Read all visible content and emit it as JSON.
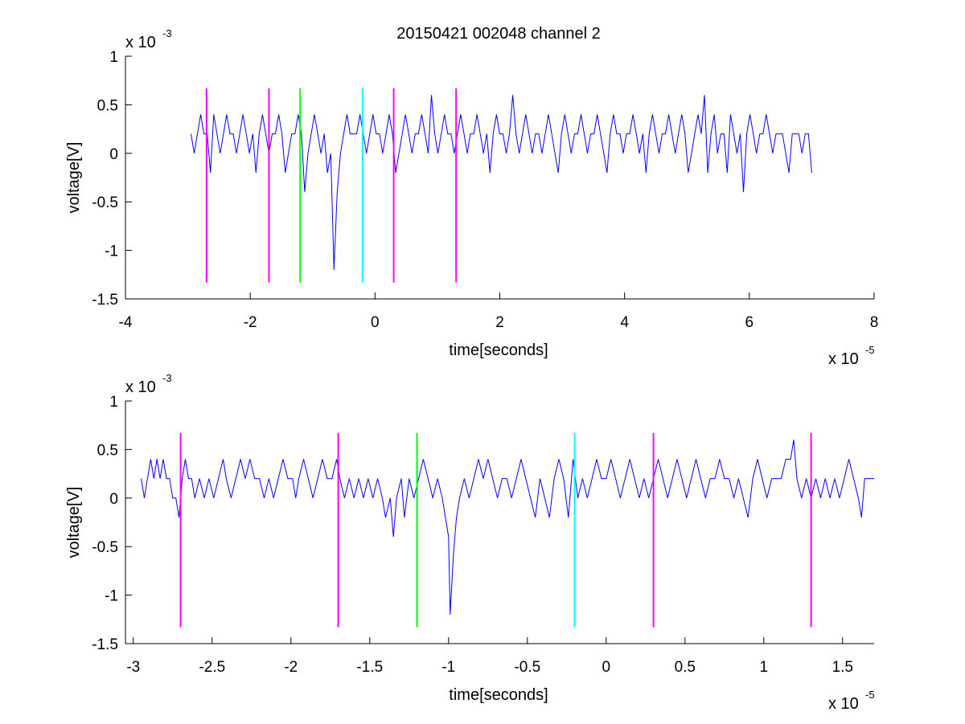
{
  "figure": {
    "title": "20150421 002048 channel 2"
  },
  "chart_data": [
    {
      "type": "line",
      "title": "20150421 002048 channel 2",
      "xlabel": "time[seconds]",
      "ylabel": "voltage[V]",
      "x_exponent_label": "x 10",
      "x_exponent_sup": "-5",
      "y_exponent_label": "x 10",
      "y_exponent_sup": "-3",
      "x_scale": 1e-05,
      "y_scale": 0.001,
      "xlim": [
        -4,
        8
      ],
      "ylim": [
        -1.5,
        1
      ],
      "xticks": [
        -4,
        -2,
        0,
        2,
        4,
        6,
        8
      ],
      "xtick_labels": [
        "-4",
        "-2",
        "0",
        "2",
        "4",
        "6",
        "8"
      ],
      "yticks": [
        -1.5,
        -1,
        -0.5,
        0,
        0.5,
        1
      ],
      "ytick_labels": [
        "-1.5",
        "-1",
        "-0.5",
        "0",
        "0.5",
        "1"
      ],
      "grid": false,
      "signal": {
        "color": "#0000ff",
        "x_start": -2.95,
        "x_end": 7.0,
        "values": [
          0.2,
          0.0,
          0.2,
          0.4,
          0.2,
          0.2,
          -0.2,
          0.4,
          0.2,
          0.0,
          0.2,
          0.4,
          0.2,
          0.2,
          0.0,
          0.2,
          0.4,
          0.2,
          0.0,
          0.2,
          -0.2,
          0.2,
          0.4,
          0.2,
          0.0,
          0.2,
          0.2,
          0.4,
          0.2,
          -0.2,
          0.0,
          0.2,
          0.2,
          0.4,
          0.2,
          -0.4,
          0.0,
          0.2,
          0.4,
          0.2,
          0.0,
          0.2,
          -0.2,
          0.0,
          -1.2,
          -0.4,
          0.0,
          0.2,
          0.4,
          0.2,
          0.2,
          0.2,
          0.4,
          0.2,
          0.0,
          0.2,
          0.4,
          0.2,
          0.2,
          0.0,
          0.2,
          0.4,
          0.2,
          -0.2,
          0.0,
          0.2,
          0.4,
          0.2,
          0.0,
          0.2,
          0.2,
          0.4,
          0.2,
          0.0,
          0.6,
          0.2,
          0.0,
          0.2,
          0.4,
          0.2,
          0.2,
          0.0,
          0.2,
          0.4,
          0.2,
          0.0,
          0.2,
          0.2,
          0.4,
          0.2,
          0.0,
          0.2,
          -0.2,
          0.2,
          0.4,
          0.2,
          0.2,
          0.0,
          0.2,
          0.6,
          0.2,
          0.0,
          0.2,
          0.4,
          0.2,
          0.0,
          0.2,
          0.2,
          0.0,
          0.2,
          0.4,
          0.2,
          0.0,
          -0.2,
          0.2,
          0.4,
          0.2,
          0.0,
          0.2,
          0.2,
          0.4,
          0.2,
          0.0,
          0.2,
          0.2,
          0.4,
          0.2,
          0.0,
          -0.2,
          0.2,
          0.4,
          0.2,
          0.2,
          0.0,
          0.2,
          0.2,
          0.4,
          0.2,
          0.0,
          0.2,
          -0.2,
          0.2,
          0.4,
          0.2,
          0.0,
          0.2,
          0.2,
          0.4,
          0.2,
          0.0,
          0.2,
          0.4,
          0.2,
          -0.2,
          0.0,
          0.2,
          0.4,
          0.2,
          0.6,
          -0.2,
          0.2,
          0.4,
          0.0,
          0.2,
          0.2,
          -0.2,
          0.4,
          0.2,
          0.0,
          0.2,
          -0.4,
          0.2,
          0.4,
          0.2,
          0.0,
          0.2,
          0.2,
          0.4,
          0.2,
          0.0,
          0.2,
          0.2,
          0.2,
          0.0,
          -0.2,
          0.2,
          0.2,
          0.2,
          0.0,
          0.2,
          0.2,
          -0.2
        ]
      },
      "markers": [
        {
          "x": -2.7,
          "color": "#ff00ff"
        },
        {
          "x": -1.7,
          "color": "#ff00ff"
        },
        {
          "x": -1.2,
          "color": "#00ff00"
        },
        {
          "x": -0.2,
          "color": "#00ffff"
        },
        {
          "x": 0.3,
          "color": "#ff00ff"
        },
        {
          "x": 1.3,
          "color": "#ff00ff"
        }
      ],
      "marker_ylim": [
        -1.33,
        0.67
      ]
    },
    {
      "type": "line",
      "xlabel": "time[seconds]",
      "ylabel": "voltage[V]",
      "x_exponent_label": "x 10",
      "x_exponent_sup": "-5",
      "y_exponent_label": "x 10",
      "y_exponent_sup": "-3",
      "x_scale": 1e-05,
      "y_scale": 0.001,
      "xlim": [
        -3.05,
        1.7
      ],
      "ylim": [
        -1.5,
        1
      ],
      "xticks": [
        -3,
        -2.5,
        -2,
        -1.5,
        -1,
        -0.5,
        0,
        0.5,
        1,
        1.5
      ],
      "xtick_labels": [
        "-3",
        "-2.5",
        "-2",
        "-1.5",
        "-1",
        "-0.5",
        "0",
        "0.5",
        "1",
        "1.5"
      ],
      "yticks": [
        -1.5,
        -1,
        -0.5,
        0,
        0.5,
        1
      ],
      "ytick_labels": [
        "-1.5",
        "-1",
        "-0.5",
        "0",
        "0.5",
        "1"
      ],
      "grid": false,
      "signal": {
        "color": "#0000ff",
        "points": [
          [
            -2.95,
            0.2
          ],
          [
            -2.93,
            0.0
          ],
          [
            -2.91,
            0.2
          ],
          [
            -2.89,
            0.4
          ],
          [
            -2.87,
            0.2
          ],
          [
            -2.85,
            0.4
          ],
          [
            -2.83,
            0.2
          ],
          [
            -2.81,
            0.4
          ],
          [
            -2.79,
            0.2
          ],
          [
            -2.77,
            0.2
          ],
          [
            -2.75,
            0.0
          ],
          [
            -2.73,
            0.0
          ],
          [
            -2.71,
            -0.2
          ],
          [
            -2.69,
            0.2
          ],
          [
            -2.67,
            0.4
          ],
          [
            -2.65,
            0.2
          ],
          [
            -2.63,
            0.2
          ],
          [
            -2.61,
            0.0
          ],
          [
            -2.58,
            0.2
          ],
          [
            -2.55,
            0.0
          ],
          [
            -2.52,
            0.2
          ],
          [
            -2.49,
            0.0
          ],
          [
            -2.46,
            0.2
          ],
          [
            -2.43,
            0.4
          ],
          [
            -2.41,
            0.2
          ],
          [
            -2.38,
            0.0
          ],
          [
            -2.35,
            0.2
          ],
          [
            -2.32,
            0.4
          ],
          [
            -2.29,
            0.2
          ],
          [
            -2.26,
            0.4
          ],
          [
            -2.23,
            0.2
          ],
          [
            -2.2,
            0.2
          ],
          [
            -2.17,
            0.0
          ],
          [
            -2.14,
            0.2
          ],
          [
            -2.11,
            0.0
          ],
          [
            -2.08,
            0.2
          ],
          [
            -2.05,
            0.4
          ],
          [
            -2.02,
            0.2
          ],
          [
            -1.99,
            0.2
          ],
          [
            -1.97,
            0.0
          ],
          [
            -1.95,
            0.2
          ],
          [
            -1.92,
            0.4
          ],
          [
            -1.89,
            0.2
          ],
          [
            -1.86,
            0.0
          ],
          [
            -1.83,
            0.2
          ],
          [
            -1.8,
            0.4
          ],
          [
            -1.77,
            0.2
          ],
          [
            -1.74,
            0.2
          ],
          [
            -1.71,
            0.4
          ],
          [
            -1.69,
            0.2
          ],
          [
            -1.66,
            0.0
          ],
          [
            -1.63,
            0.2
          ],
          [
            -1.6,
            0.0
          ],
          [
            -1.57,
            0.2
          ],
          [
            -1.54,
            0.0
          ],
          [
            -1.51,
            0.2
          ],
          [
            -1.48,
            0.0
          ],
          [
            -1.45,
            0.2
          ],
          [
            -1.42,
            0.0
          ],
          [
            -1.4,
            -0.2
          ],
          [
            -1.37,
            0.0
          ],
          [
            -1.35,
            -0.4
          ],
          [
            -1.33,
            0.0
          ],
          [
            -1.3,
            0.2
          ],
          [
            -1.28,
            -0.2
          ],
          [
            -1.25,
            0.2
          ],
          [
            -1.22,
            0.0
          ],
          [
            -1.19,
            0.2
          ],
          [
            -1.16,
            0.4
          ],
          [
            -1.13,
            0.2
          ],
          [
            -1.1,
            0.0
          ],
          [
            -1.07,
            0.2
          ],
          [
            -1.04,
            0.0
          ],
          [
            -1.02,
            -0.2
          ],
          [
            -1.0,
            -0.4
          ],
          [
            -0.99,
            -1.2
          ],
          [
            -0.97,
            -0.6
          ],
          [
            -0.95,
            -0.2
          ],
          [
            -0.93,
            0.0
          ],
          [
            -0.9,
            0.2
          ],
          [
            -0.87,
            0.0
          ],
          [
            -0.84,
            0.2
          ],
          [
            -0.81,
            0.4
          ],
          [
            -0.78,
            0.2
          ],
          [
            -0.75,
            0.4
          ],
          [
            -0.72,
            0.2
          ],
          [
            -0.69,
            0.0
          ],
          [
            -0.66,
            0.2
          ],
          [
            -0.63,
            0.2
          ],
          [
            -0.6,
            0.0
          ],
          [
            -0.57,
            0.2
          ],
          [
            -0.54,
            0.4
          ],
          [
            -0.51,
            0.2
          ],
          [
            -0.48,
            0.0
          ],
          [
            -0.45,
            -0.2
          ],
          [
            -0.42,
            0.2
          ],
          [
            -0.39,
            0.0
          ],
          [
            -0.36,
            -0.2
          ],
          [
            -0.33,
            0.2
          ],
          [
            -0.3,
            0.4
          ],
          [
            -0.27,
            0.2
          ],
          [
            -0.24,
            -0.2
          ],
          [
            -0.21,
            0.4
          ],
          [
            -0.18,
            0.0
          ],
          [
            -0.15,
            0.2
          ],
          [
            -0.12,
            0.0
          ],
          [
            -0.09,
            0.2
          ],
          [
            -0.06,
            0.4
          ],
          [
            -0.03,
            0.2
          ],
          [
            0.0,
            0.2
          ],
          [
            0.03,
            0.4
          ],
          [
            0.06,
            0.2
          ],
          [
            0.09,
            0.0
          ],
          [
            0.12,
            0.2
          ],
          [
            0.15,
            0.4
          ],
          [
            0.18,
            0.2
          ],
          [
            0.21,
            0.0
          ],
          [
            0.24,
            0.2
          ],
          [
            0.27,
            0.0
          ],
          [
            0.3,
            0.2
          ],
          [
            0.33,
            0.4
          ],
          [
            0.36,
            0.2
          ],
          [
            0.39,
            0.0
          ],
          [
            0.42,
            0.2
          ],
          [
            0.45,
            0.4
          ],
          [
            0.48,
            0.2
          ],
          [
            0.51,
            0.0
          ],
          [
            0.54,
            0.2
          ],
          [
            0.57,
            0.4
          ],
          [
            0.6,
            0.2
          ],
          [
            0.63,
            0.0
          ],
          [
            0.66,
            0.2
          ],
          [
            0.69,
            0.2
          ],
          [
            0.72,
            0.4
          ],
          [
            0.75,
            0.2
          ],
          [
            0.78,
            0.2
          ],
          [
            0.81,
            0.0
          ],
          [
            0.84,
            0.2
          ],
          [
            0.87,
            0.0
          ],
          [
            0.9,
            -0.2
          ],
          [
            0.93,
            0.2
          ],
          [
            0.96,
            0.4
          ],
          [
            0.99,
            0.2
          ],
          [
            1.02,
            0.0
          ],
          [
            1.05,
            0.2
          ],
          [
            1.08,
            0.2
          ],
          [
            1.11,
            0.2
          ],
          [
            1.14,
            0.4
          ],
          [
            1.17,
            0.4
          ],
          [
            1.19,
            0.6
          ],
          [
            1.21,
            0.2
          ],
          [
            1.24,
            0.0
          ],
          [
            1.27,
            0.2
          ],
          [
            1.3,
            0.0
          ],
          [
            1.33,
            0.2
          ],
          [
            1.36,
            0.0
          ],
          [
            1.39,
            0.2
          ],
          [
            1.42,
            0.0
          ],
          [
            1.45,
            0.2
          ],
          [
            1.48,
            0.0
          ],
          [
            1.51,
            0.2
          ],
          [
            1.54,
            0.4
          ],
          [
            1.57,
            0.2
          ],
          [
            1.6,
            0.0
          ],
          [
            1.62,
            -0.2
          ],
          [
            1.64,
            0.2
          ],
          [
            1.66,
            0.2
          ],
          [
            1.7,
            0.2
          ]
        ]
      },
      "markers": [
        {
          "x": -2.7,
          "color": "#ff00ff"
        },
        {
          "x": -1.7,
          "color": "#ff00ff"
        },
        {
          "x": -1.2,
          "color": "#00ff00"
        },
        {
          "x": -0.2,
          "color": "#00ffff"
        },
        {
          "x": 0.3,
          "color": "#ff00ff"
        },
        {
          "x": 1.3,
          "color": "#ff00ff"
        }
      ],
      "marker_ylim": [
        -1.33,
        0.67
      ]
    }
  ]
}
